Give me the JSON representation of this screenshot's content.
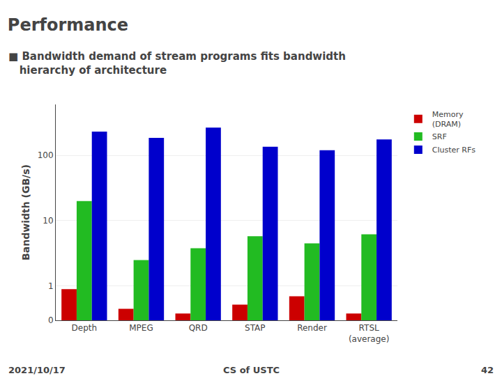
{
  "chart_data": {
    "type": "bar",
    "title": "Performance",
    "subtitle": "■ Bandwidth demand of stream programs fits bandwidth\n   hierarchy of architecture",
    "categories": [
      "Depth",
      "MPEG",
      "QRD",
      "STAP",
      "Render",
      "RTSL\n(average)"
    ],
    "series": [
      {
        "name": "Memory\n(DRAM)",
        "color": "#cc0000",
        "values": [
          0.9,
          0.45,
          0.38,
          0.52,
          0.7,
          0.38
        ]
      },
      {
        "name": "SRF",
        "color": "#22bb22",
        "values": [
          20.0,
          2.5,
          3.8,
          5.8,
          4.5,
          6.2
        ]
      },
      {
        "name": "Cluster RFs",
        "color": "#0000cc",
        "values": [
          230,
          185,
          265,
          135,
          120,
          175
        ]
      }
    ],
    "ylabel": "Bandwidth (GB/s)",
    "log": "y",
    "ylim": [
      0.3,
      600
    ],
    "yticks": [
      {
        "value": 0.3,
        "label": "0"
      },
      1,
      10,
      100
    ],
    "grid": true,
    "legend": "upper right",
    "annotations": [
      "2021/10/17",
      "CS of USTC",
      "42"
    ]
  }
}
